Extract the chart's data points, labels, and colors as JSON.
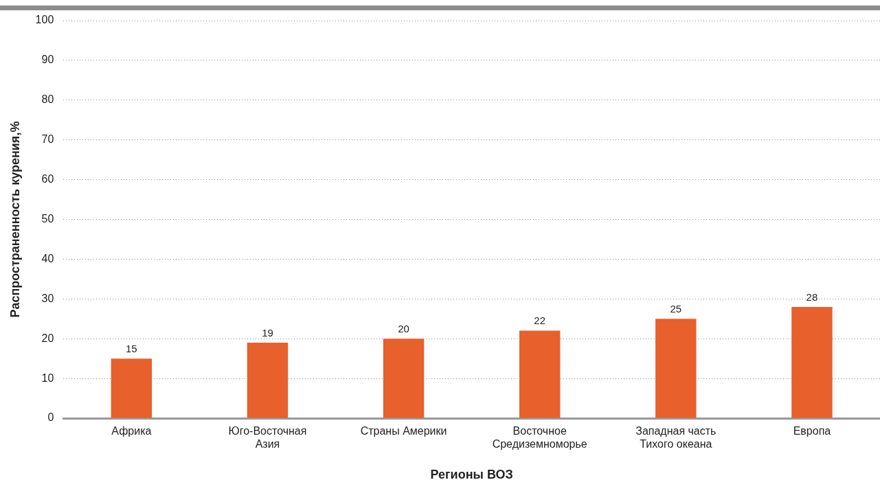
{
  "chart_data": {
    "type": "bar",
    "xlabel": "Регионы ВОЗ",
    "ylabel": "Распространенность курения,%",
    "categories": [
      "Африка",
      "Юго-Восточная Азия",
      "Страны Америки",
      "Восточное Средиземноморье",
      "Западная часть Тихого океана",
      "Европа"
    ],
    "values": [
      15,
      19,
      20,
      22,
      25,
      28
    ],
    "color": "#e8602c",
    "ylim": [
      0,
      100
    ],
    "yticks": [
      0,
      10,
      20,
      30,
      40,
      50,
      60,
      70,
      80,
      90,
      100
    ],
    "grid": "y",
    "data_labels": true,
    "legend": false
  }
}
